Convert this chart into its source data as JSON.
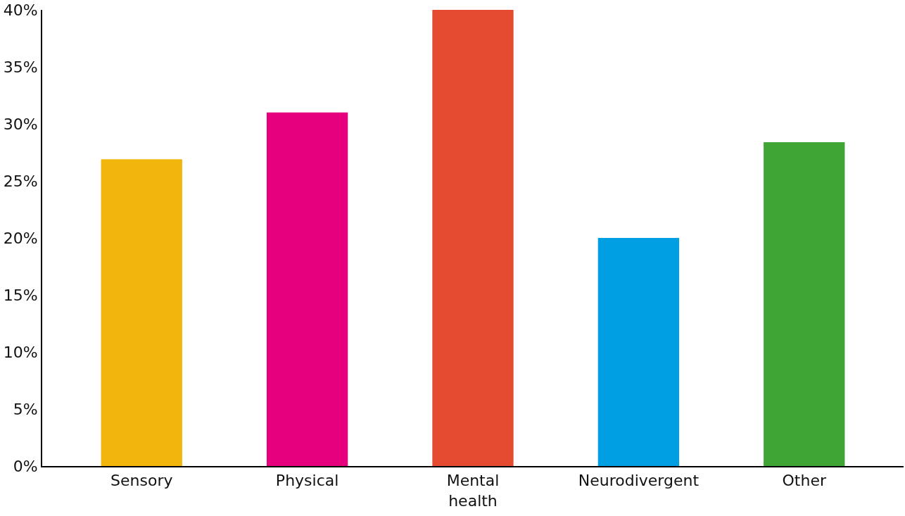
{
  "chart_data": {
    "type": "bar",
    "categories": [
      "Sensory",
      "Physical",
      "Mental health",
      "Neurodivergent",
      "Other"
    ],
    "values": [
      26.9,
      31,
      40,
      20,
      28.4
    ],
    "colors": [
      "#f2b50c",
      "#e6007e",
      "#e54b30",
      "#009fe3",
      "#3fa535"
    ],
    "ylim": [
      0,
      40
    ],
    "yticks": [
      {
        "value": 0,
        "label": "0%"
      },
      {
        "value": 5,
        "label": "5%"
      },
      {
        "value": 10,
        "label": "10%"
      },
      {
        "value": 15,
        "label": "15%"
      },
      {
        "value": 20,
        "label": "20%"
      },
      {
        "value": 25,
        "label": "25%"
      },
      {
        "value": 30,
        "label": "30%"
      },
      {
        "value": 35,
        "label": "35%"
      },
      {
        "value": 40,
        "label": "40%"
      }
    ],
    "grid": false
  }
}
